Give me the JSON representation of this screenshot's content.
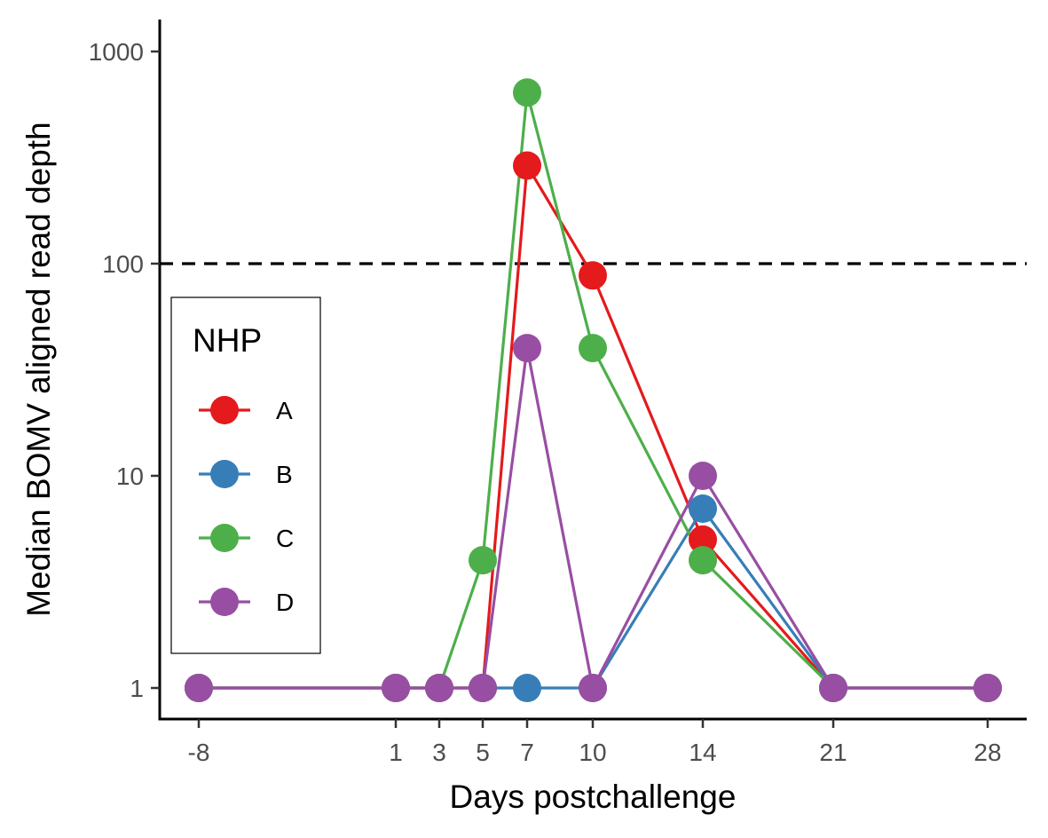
{
  "chart_data": {
    "type": "line",
    "xlabel": "Days postchallenge",
    "ylabel": "Median BOMV aligned read depth",
    "y_scale": "log10",
    "ylim": [
      0.7,
      1450
    ],
    "y_ticks": [
      1,
      10,
      100,
      1000
    ],
    "y_tick_labels": [
      "1",
      "10",
      "100",
      "1000"
    ],
    "x_ticks": [
      "-8",
      "1",
      "3",
      "5",
      "7",
      "10",
      "14",
      "21",
      "28"
    ],
    "reference_line": {
      "y": 100,
      "style": "dashed",
      "color": "#000000"
    },
    "grid": false,
    "legend": {
      "title": "NHP",
      "placement": "left"
    },
    "series": [
      {
        "name": "A",
        "color": "#E41A1C",
        "x": [
          "-8",
          "1",
          "3",
          "5",
          "7",
          "10",
          "14",
          "21",
          "28"
        ],
        "values": [
          1,
          1,
          1,
          1,
          290,
          88,
          5,
          1,
          1
        ]
      },
      {
        "name": "B",
        "color": "#377EB8",
        "x": [
          "-8",
          "1",
          "3",
          "5",
          "7",
          "10",
          "14",
          "21",
          "28"
        ],
        "values": [
          1,
          1,
          1,
          1,
          1,
          1,
          7,
          1,
          1
        ]
      },
      {
        "name": "C",
        "color": "#4DAF4A",
        "x": [
          "-8",
          "1",
          "3",
          "5",
          "7",
          "10",
          "14",
          "21",
          "28"
        ],
        "values": [
          1,
          1,
          1,
          4,
          640,
          40,
          4,
          1,
          1
        ]
      },
      {
        "name": "D",
        "color": "#984EA3",
        "x": [
          "-8",
          "1",
          "3",
          "5",
          "7",
          "10",
          "14",
          "21",
          "28"
        ],
        "values": [
          1,
          1,
          1,
          1,
          40,
          1,
          10,
          1,
          1
        ]
      }
    ]
  }
}
